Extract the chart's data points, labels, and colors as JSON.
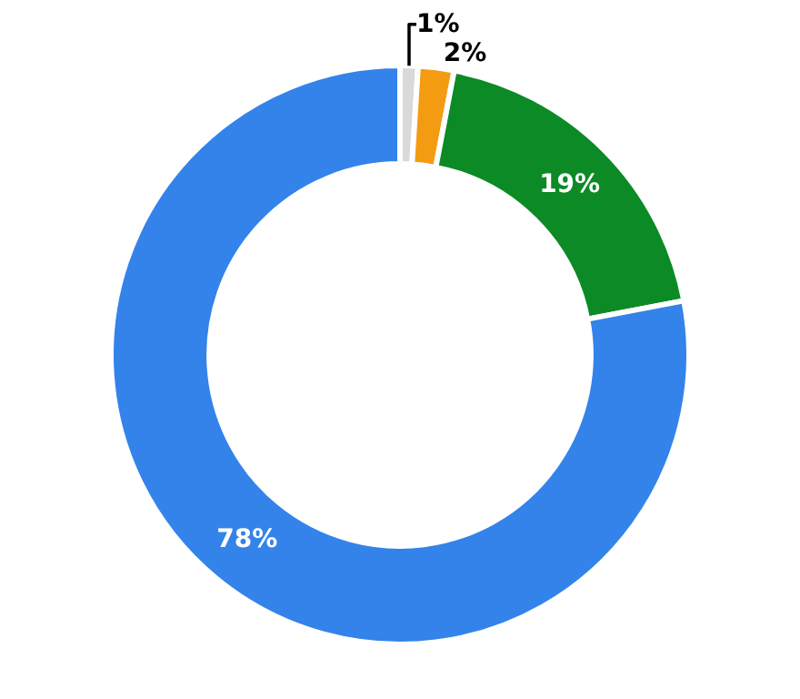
{
  "chart_data": {
    "type": "donut",
    "categories": [
      null,
      null,
      null,
      null
    ],
    "values": [
      1,
      2,
      19,
      78
    ],
    "colors": [
      "#d9d9d9",
      "#f39c12",
      "#0b8a26",
      "#3383ea"
    ],
    "value_labels": [
      "1%",
      "2%",
      "19%",
      "78%"
    ],
    "legend": false
  }
}
